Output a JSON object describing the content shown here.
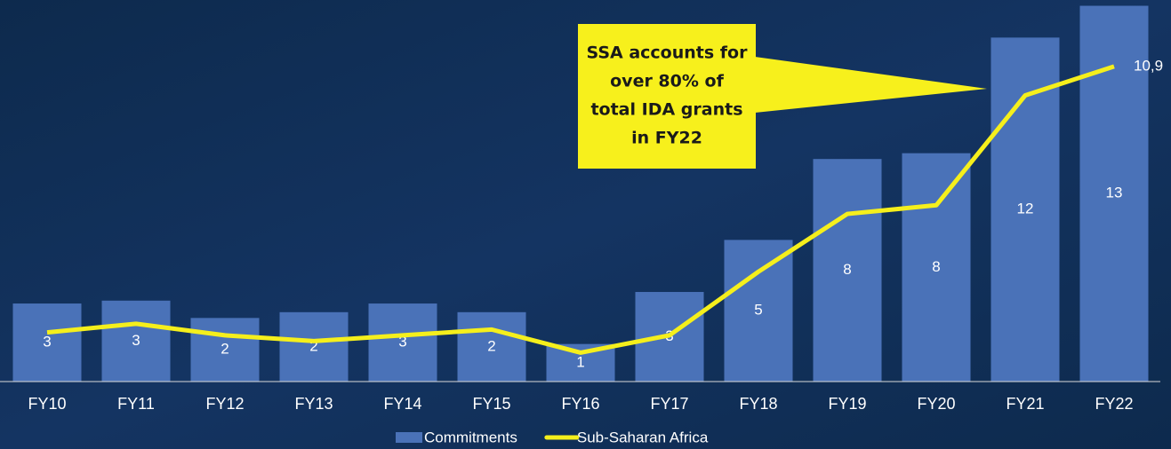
{
  "chart_data": {
    "type": "bar",
    "categories": [
      "FY10",
      "FY11",
      "FY12",
      "FY13",
      "FY14",
      "FY15",
      "FY16",
      "FY17",
      "FY18",
      "FY19",
      "FY20",
      "FY21",
      "FY22"
    ],
    "ylim": [
      0,
      13.2
    ],
    "series": [
      {
        "name": "Commitments",
        "type": "bar",
        "color": "#4a72b8",
        "values": [
          2.7,
          2.8,
          2.2,
          2.4,
          2.7,
          2.4,
          1.3,
          3.1,
          4.9,
          7.7,
          7.9,
          11.9,
          13.0
        ],
        "value_labels": [
          "3",
          "3",
          "2",
          "2",
          "3",
          "2",
          "1",
          "3",
          "5",
          "8",
          "8",
          "12",
          "13"
        ]
      },
      {
        "name": "Sub-Saharan Africa",
        "type": "line",
        "color": "#f5ef1c",
        "values": [
          1.7,
          2.0,
          1.6,
          1.4,
          1.6,
          1.8,
          1.0,
          1.6,
          3.8,
          5.8,
          6.1,
          9.9,
          10.9
        ],
        "value_labels": [
          null,
          null,
          null,
          null,
          null,
          null,
          null,
          null,
          null,
          null,
          null,
          null,
          "10,9"
        ]
      }
    ],
    "annotation": [
      "SSA accounts for",
      "over 80% of",
      "total IDA grants",
      "in FY22"
    ]
  }
}
